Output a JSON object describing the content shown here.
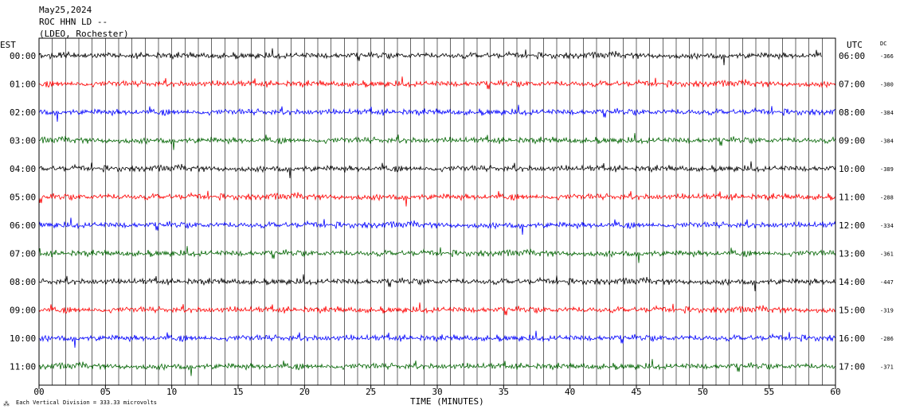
{
  "header": {
    "date": "May25,2024",
    "station": "ROC HHN LD --",
    "network": "(LDEO, Rochester)"
  },
  "left_tz": "EST",
  "right_tz": "UTC",
  "dc_header": "DC",
  "footer": {
    "xlabel": "TIME (MINUTES)",
    "scale_note": "Each Vertical Division =  333.33 microvolts"
  },
  "chart_data": {
    "type": "line",
    "title": "",
    "xlabel": "TIME (MINUTES)",
    "x_ticks": [
      "00",
      "05",
      "10",
      "15",
      "20",
      "25",
      "30",
      "35",
      "40",
      "45",
      "50",
      "55",
      "60"
    ],
    "xlim": [
      0,
      60
    ],
    "grid": "vertical lines every minute",
    "colors": [
      "#000000",
      "#ff0000",
      "#0000ff",
      "#006400"
    ],
    "rows": [
      {
        "est": "00:00",
        "utc": "06:00",
        "dc": "-366",
        "end_minute": 59
      },
      {
        "est": "01:00",
        "utc": "07:00",
        "dc": "-380",
        "end_minute": 60
      },
      {
        "est": "02:00",
        "utc": "08:00",
        "dc": "-384",
        "end_minute": 60
      },
      {
        "est": "03:00",
        "utc": "09:00",
        "dc": "-384",
        "end_minute": 60
      },
      {
        "est": "04:00",
        "utc": "10:00",
        "dc": "-389",
        "end_minute": 60
      },
      {
        "est": "05:00",
        "utc": "11:00",
        "dc": "-288",
        "end_minute": 60
      },
      {
        "est": "06:00",
        "utc": "12:00",
        "dc": "-334",
        "end_minute": 60
      },
      {
        "est": "07:00",
        "utc": "13:00",
        "dc": "-361",
        "end_minute": 60
      },
      {
        "est": "08:00",
        "utc": "14:00",
        "dc": "-447",
        "end_minute": 60
      },
      {
        "est": "09:00",
        "utc": "15:00",
        "dc": "-319",
        "end_minute": 60
      },
      {
        "est": "10:00",
        "utc": "16:00",
        "dc": "-286",
        "end_minute": 60
      },
      {
        "est": "11:00",
        "utc": "17:00",
        "dc": "-371",
        "end_minute": 60
      }
    ]
  }
}
